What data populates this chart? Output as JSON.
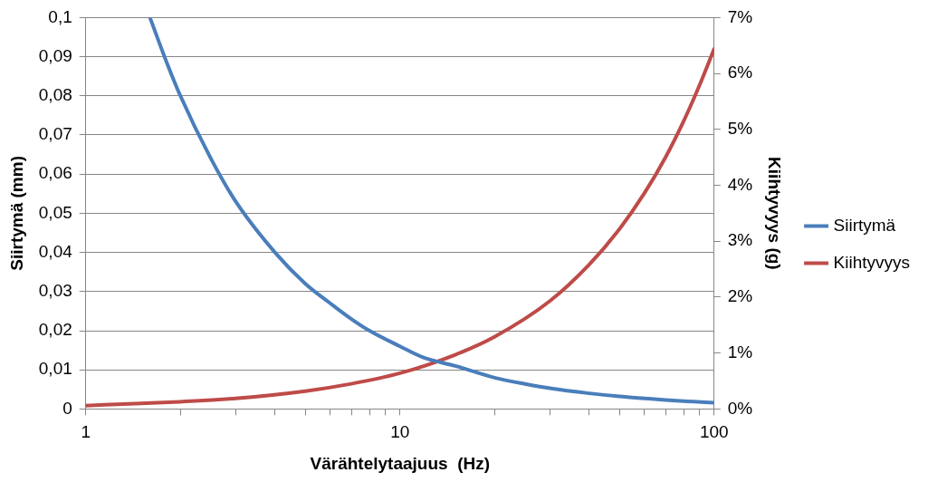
{
  "chart_data": {
    "type": "line",
    "xlabel": "Värähtelytaajuus  (Hz)",
    "ylabel": "Siirtymä (mm)",
    "y2label": "Kiihtyvyys (g)",
    "log": "x",
    "grid": "y",
    "legend": "right",
    "marker": "none",
    "line_style": "solid",
    "xlim": [
      1,
      100
    ],
    "xticks": [
      1,
      {
        "value": 2,
        "label": null
      },
      {
        "value": 3,
        "label": null
      },
      {
        "value": 4,
        "label": null
      },
      {
        "value": 5,
        "label": null
      },
      {
        "value": 6,
        "label": null
      },
      {
        "value": 7,
        "label": null
      },
      {
        "value": 8,
        "label": null
      },
      {
        "value": 9,
        "label": null
      },
      10,
      {
        "value": 20,
        "label": null
      },
      {
        "value": 30,
        "label": null
      },
      {
        "value": 40,
        "label": null
      },
      {
        "value": 50,
        "label": null
      },
      {
        "value": 60,
        "label": null
      },
      {
        "value": 70,
        "label": null
      },
      {
        "value": 80,
        "label": null
      },
      {
        "value": 90,
        "label": null
      },
      100
    ],
    "ylim": [
      0,
      0.1
    ],
    "yticks": [
      0,
      {
        "value": 0.01,
        "label": "0,01"
      },
      {
        "value": 0.02,
        "label": "0,02"
      },
      {
        "value": 0.03,
        "label": "0,03"
      },
      {
        "value": 0.04,
        "label": "0,04"
      },
      {
        "value": 0.05,
        "label": "0,05"
      },
      {
        "value": 0.06,
        "label": "0,06"
      },
      {
        "value": 0.07,
        "label": "0,07"
      },
      {
        "value": 0.08,
        "label": "0,08"
      },
      {
        "value": 0.09,
        "label": "0,09"
      },
      {
        "value": 0.1,
        "label": "0,1"
      }
    ],
    "y2lim": [
      0,
      7
    ],
    "y2ticks": [
      {
        "value": 0,
        "label": "0%"
      },
      {
        "value": 1,
        "label": "1%"
      },
      {
        "value": 2,
        "label": "2%"
      },
      {
        "value": 3,
        "label": "3%"
      },
      {
        "value": 4,
        "label": "4%"
      },
      {
        "value": 5,
        "label": "5%"
      },
      {
        "value": 6,
        "label": "6%"
      },
      {
        "value": 7,
        "label": "7%"
      }
    ],
    "series": [
      {
        "name": "Siirtymä",
        "color": "#4a7ebb",
        "x": [
          1.6,
          1.8,
          2,
          2.5,
          3,
          4,
          5,
          6,
          7,
          8,
          10,
          12,
          15,
          20,
          25,
          30,
          40,
          50,
          60,
          70,
          80,
          100
        ],
        "values": [
          0.1,
          0.089,
          0.08,
          0.064,
          0.053,
          0.04,
          0.032,
          0.027,
          0.023,
          0.02,
          0.016,
          0.013,
          0.011,
          0.008,
          0.0064,
          0.0053,
          0.004,
          0.0032,
          0.0027,
          0.0023,
          0.002,
          0.0016
        ]
      },
      {
        "name": "Kiihtyvyys",
        "color": "#be4b48",
        "axis": "y2",
        "x": [
          1,
          1.5,
          2,
          3,
          5,
          7,
          10,
          15,
          20,
          30,
          40,
          50,
          60,
          70,
          80,
          90,
          100
        ],
        "values": [
          0.06,
          0.1,
          0.13,
          0.19,
          0.32,
          0.45,
          0.64,
          0.97,
          1.29,
          1.93,
          2.58,
          3.22,
          3.86,
          4.5,
          5.15,
          5.8,
          6.44
        ]
      }
    ]
  }
}
